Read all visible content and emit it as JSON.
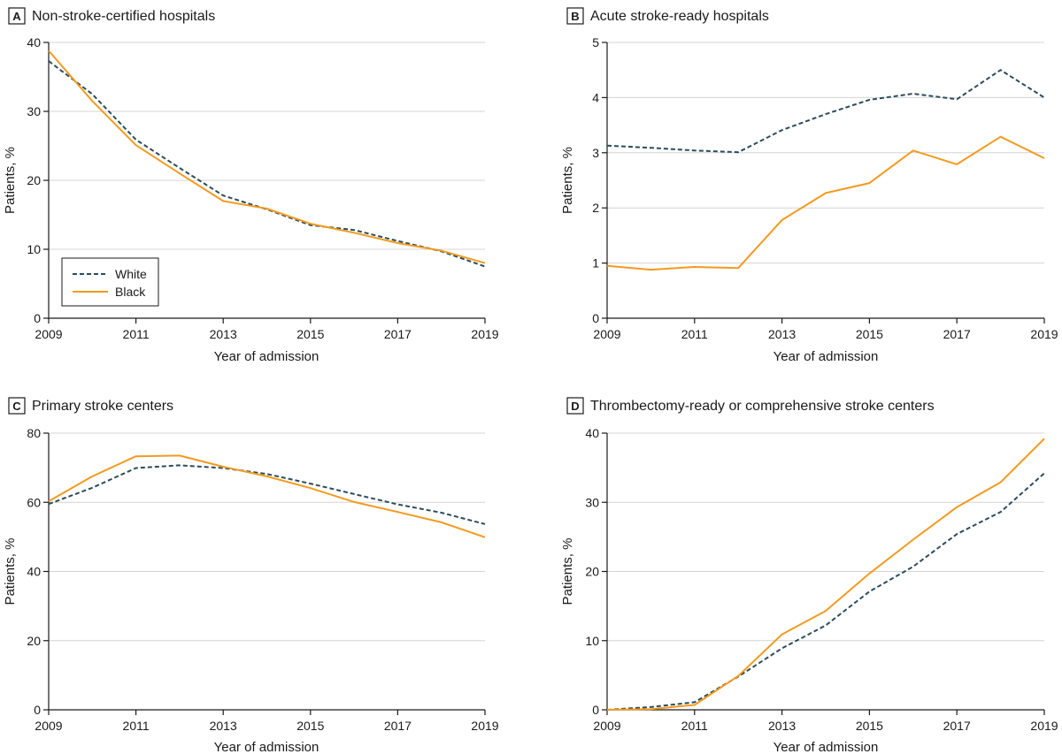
{
  "series_styles": [
    {
      "name": "White",
      "color": "#2c4c5c",
      "dash": "dashed"
    },
    {
      "name": "Black",
      "color": "#f39a1e",
      "dash": "solid"
    }
  ],
  "chart_data": [
    {
      "type": "line",
      "letter": "A",
      "title": "Non-stroke-certified hospitals",
      "xlabel": "Year of admission",
      "ylabel": "Patients, %",
      "x": [
        2009,
        2010,
        2011,
        2012,
        2013,
        2014,
        2015,
        2016,
        2017,
        2018,
        2019
      ],
      "xticks": [
        "2009",
        "2011",
        "2013",
        "2015",
        "2017",
        "2019"
      ],
      "xlim": [
        2009,
        2019
      ],
      "ylim": [
        0,
        40
      ],
      "yticks": [
        "0",
        "10",
        "20",
        "30",
        "40"
      ],
      "grid": true,
      "legend": {
        "placement": "bottom-left",
        "entries": [
          "White",
          "Black"
        ]
      },
      "series": [
        {
          "name": "White",
          "values": [
            37.3,
            32.5,
            25.9,
            21.8,
            17.8,
            15.8,
            13.5,
            12.8,
            11.2,
            9.7,
            7.5
          ]
        },
        {
          "name": "Black",
          "values": [
            38.8,
            31.5,
            25.1,
            21.0,
            17.0,
            15.9,
            13.7,
            12.4,
            10.9,
            9.8,
            8.0
          ]
        }
      ]
    },
    {
      "type": "line",
      "letter": "B",
      "title": "Acute stroke-ready hospitals",
      "xlabel": "Year of admission",
      "ylabel": "Patients, %",
      "x": [
        2009,
        2010,
        2011,
        2012,
        2013,
        2014,
        2015,
        2016,
        2017,
        2018,
        2019
      ],
      "xticks": [
        "2009",
        "2011",
        "2013",
        "2015",
        "2017",
        "2019"
      ],
      "xlim": [
        2009,
        2019
      ],
      "ylim": [
        0,
        5
      ],
      "yticks": [
        "0",
        "1",
        "2",
        "3",
        "4",
        "5"
      ],
      "grid": true,
      "series": [
        {
          "name": "White",
          "values": [
            3.13,
            3.09,
            3.04,
            3.01,
            3.41,
            3.7,
            3.96,
            4.07,
            3.97,
            4.5,
            4.0
          ]
        },
        {
          "name": "Black",
          "values": [
            0.95,
            0.88,
            0.93,
            0.91,
            1.78,
            2.27,
            2.45,
            3.04,
            2.79,
            3.29,
            2.9
          ]
        }
      ]
    },
    {
      "type": "line",
      "letter": "C",
      "title": "Primary stroke centers",
      "xlabel": "Year of admission",
      "ylabel": "Patients, %",
      "x": [
        2009,
        2010,
        2011,
        2012,
        2013,
        2014,
        2015,
        2016,
        2017,
        2018,
        2019
      ],
      "xticks": [
        "2009",
        "2011",
        "2013",
        "2015",
        "2017",
        "2019"
      ],
      "xlim": [
        2009,
        2019
      ],
      "ylim": [
        0,
        80
      ],
      "yticks": [
        "0",
        "20",
        "40",
        "60",
        "80"
      ],
      "grid": true,
      "series": [
        {
          "name": "White",
          "values": [
            59.5,
            64.2,
            69.9,
            70.7,
            69.9,
            68.2,
            65.4,
            62.4,
            59.4,
            57.0,
            53.7
          ]
        },
        {
          "name": "Black",
          "values": [
            60.3,
            67.5,
            73.3,
            73.5,
            70.3,
            67.5,
            64.1,
            60.1,
            57.2,
            54.2,
            49.9
          ]
        }
      ]
    },
    {
      "type": "line",
      "letter": "D",
      "title": "Thrombectomy-ready or comprehensive stroke centers",
      "xlabel": "Year of admission",
      "ylabel": "Patients, %",
      "x": [
        2009,
        2010,
        2011,
        2012,
        2013,
        2014,
        2015,
        2016,
        2017,
        2018,
        2019
      ],
      "xticks": [
        "2009",
        "2011",
        "2013",
        "2015",
        "2017",
        "2019"
      ],
      "xlim": [
        2009,
        2019
      ],
      "ylim": [
        0,
        40
      ],
      "yticks": [
        "0",
        "10",
        "20",
        "30",
        "40"
      ],
      "grid": true,
      "series": [
        {
          "name": "White",
          "values": [
            0.0,
            0.4,
            1.1,
            4.8,
            8.9,
            12.2,
            17.1,
            20.7,
            25.4,
            28.6,
            34.2
          ]
        },
        {
          "name": "Black",
          "values": [
            0.0,
            0.1,
            0.7,
            4.9,
            10.9,
            14.3,
            19.7,
            24.6,
            29.3,
            32.9,
            39.2
          ]
        }
      ]
    }
  ]
}
